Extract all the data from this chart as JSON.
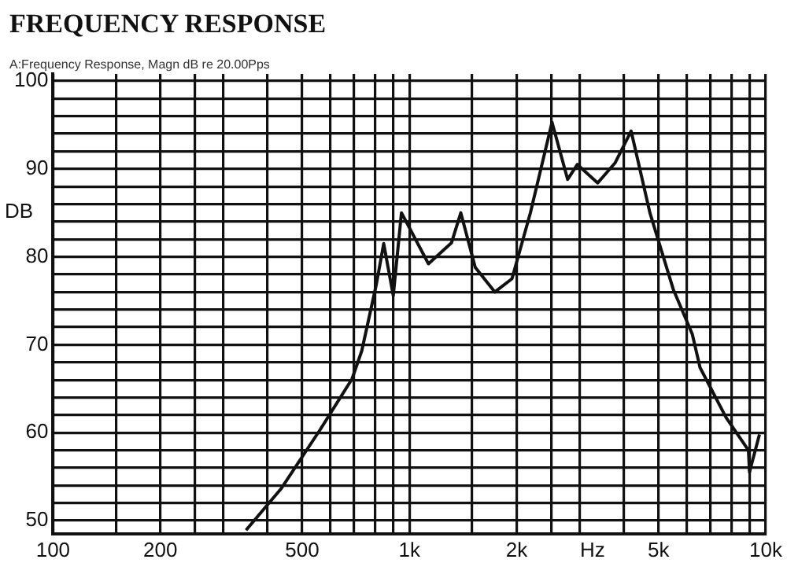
{
  "chart_data": {
    "type": "line",
    "title": "FREQUENCY RESPONSE",
    "subtitle": "A:Frequency Response, Magn dB re 20.00Pps",
    "xlabel": "Hz",
    "ylabel": "DB",
    "log": "x",
    "xlim": [
      100,
      10000
    ],
    "ylim": [
      48.5,
      100.8
    ],
    "xticks": [
      100,
      {
        "value": 150,
        "label": null
      },
      200,
      {
        "value": 250,
        "label": null
      },
      {
        "value": 300,
        "label": null
      },
      {
        "value": 400,
        "label": null
      },
      500,
      {
        "value": 600,
        "label": null
      },
      {
        "value": 700,
        "label": null
      },
      {
        "value": 800,
        "label": null
      },
      {
        "value": 900,
        "label": null
      },
      {
        "value": 1000,
        "label": "1k"
      },
      {
        "value": 1500,
        "label": null
      },
      {
        "value": 2000,
        "label": "2k"
      },
      {
        "value": 2500,
        "label": null
      },
      {
        "value": 3000,
        "label": null
      },
      {
        "value": 4000,
        "label": null
      },
      {
        "value": 5000,
        "label": "5k"
      },
      {
        "value": 6000,
        "label": null
      },
      {
        "value": 7000,
        "label": null
      },
      {
        "value": 8000,
        "label": null
      },
      {
        "value": 9000,
        "label": null
      },
      {
        "value": 10000,
        "label": "10k"
      }
    ],
    "yticks": [
      50,
      {
        "value": 52,
        "label": null
      },
      {
        "value": 54,
        "label": null
      },
      {
        "value": 56,
        "label": null
      },
      {
        "value": 58,
        "label": null
      },
      60,
      {
        "value": 62,
        "label": null
      },
      {
        "value": 64,
        "label": null
      },
      {
        "value": 66,
        "label": null
      },
      {
        "value": 68,
        "label": null
      },
      70,
      {
        "value": 72,
        "label": null
      },
      {
        "value": 74,
        "label": null
      },
      {
        "value": 76,
        "label": null
      },
      {
        "value": 78,
        "label": null
      },
      80,
      {
        "value": 82,
        "label": null
      },
      {
        "value": 84,
        "label": null
      },
      {
        "value": 86,
        "label": null
      },
      {
        "value": 88,
        "label": null
      },
      90,
      {
        "value": 92,
        "label": null
      },
      {
        "value": 94,
        "label": null
      },
      {
        "value": 96,
        "label": null
      },
      {
        "value": 98,
        "label": null
      },
      100
    ],
    "grid": true,
    "legend": false,
    "marker": "none",
    "line_style": "solid",
    "series": [
      {
        "color": "#111111",
        "x": [
          348,
          436,
          563,
          690,
          735,
          808,
          847,
          901,
          950,
          1131,
          1313,
          1394,
          1530,
          1736,
          1940,
          2185,
          2513,
          2780,
          2960,
          3376,
          3780,
          4190,
          4730,
          5500,
          6220,
          6540,
          7740,
          8940,
          9000,
          9600
        ],
        "values": [
          48.9,
          53.6,
          60.4,
          66.1,
          69.3,
          76.9,
          81.5,
          75.6,
          85.0,
          79.2,
          81.6,
          85.0,
          78.8,
          76.0,
          77.5,
          85.0,
          95.3,
          88.8,
          90.5,
          88.4,
          90.7,
          94.3,
          85.0,
          76.3,
          71.2,
          67.4,
          61.7,
          58.0,
          55.5,
          59.8
        ]
      }
    ]
  }
}
